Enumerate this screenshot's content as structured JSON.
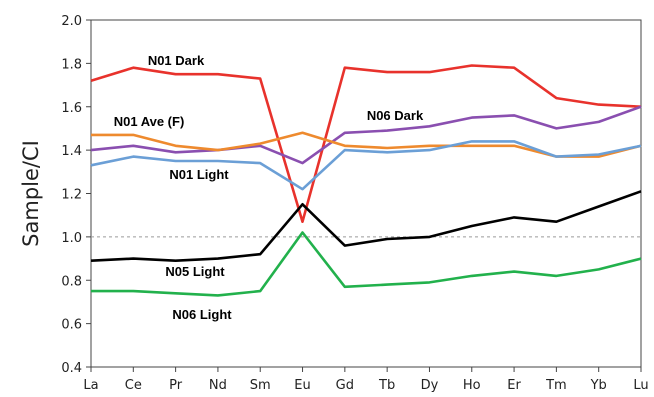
{
  "chart_data": {
    "type": "line",
    "title": "",
    "xlabel": "",
    "ylabel": "Sample/CI",
    "categories": [
      "La",
      "Ce",
      "Pr",
      "Nd",
      "Sm",
      "Eu",
      "Gd",
      "Tb",
      "Dy",
      "Ho",
      "Er",
      "Tm",
      "Yb",
      "Lu"
    ],
    "ylim": [
      0.4,
      2.0
    ],
    "yticks": [
      "0.4",
      "0.6",
      "0.8",
      "1.0",
      "1.2",
      "1.4",
      "1.6",
      "1.8",
      "2.0"
    ],
    "reference_line": {
      "y": 1.0,
      "style": "dashed",
      "color": "#9a9a9a"
    },
    "grid": false,
    "legend": "none (series labelled directly on plot)",
    "series": [
      {
        "name": "N01 Dark",
        "color": "#e8322c",
        "values": [
          1.72,
          1.78,
          1.75,
          1.75,
          1.73,
          1.07,
          1.78,
          1.76,
          1.76,
          1.79,
          1.78,
          1.64,
          1.61,
          1.6
        ]
      },
      {
        "name": "N06 Dark",
        "color": "#8a4fb0",
        "values": [
          1.4,
          1.42,
          1.39,
          1.4,
          1.42,
          1.34,
          1.48,
          1.49,
          1.51,
          1.55,
          1.56,
          1.5,
          1.53,
          1.6
        ]
      },
      {
        "name": "N01 Ave (F)",
        "color": "#ee8a2e",
        "values": [
          1.47,
          1.47,
          1.42,
          1.4,
          1.43,
          1.48,
          1.42,
          1.41,
          1.42,
          1.42,
          1.42,
          1.37,
          1.37,
          1.42
        ]
      },
      {
        "name": "N01 Light",
        "color": "#6b9fd6",
        "values": [
          1.33,
          1.37,
          1.35,
          1.35,
          1.34,
          1.22,
          1.4,
          1.39,
          1.4,
          1.44,
          1.44,
          1.37,
          1.38,
          1.42
        ]
      },
      {
        "name": "N05 Light",
        "color": "#000000",
        "values": [
          0.89,
          0.9,
          0.89,
          0.9,
          0.92,
          1.15,
          0.96,
          0.99,
          1.0,
          1.05,
          1.09,
          1.07,
          1.14,
          1.21
        ]
      },
      {
        "name": "N06 Light",
        "color": "#22b14c",
        "values": [
          0.75,
          0.75,
          0.74,
          0.73,
          0.75,
          1.02,
          0.77,
          0.78,
          0.79,
          0.82,
          0.84,
          0.82,
          0.85,
          0.9
        ]
      }
    ]
  }
}
